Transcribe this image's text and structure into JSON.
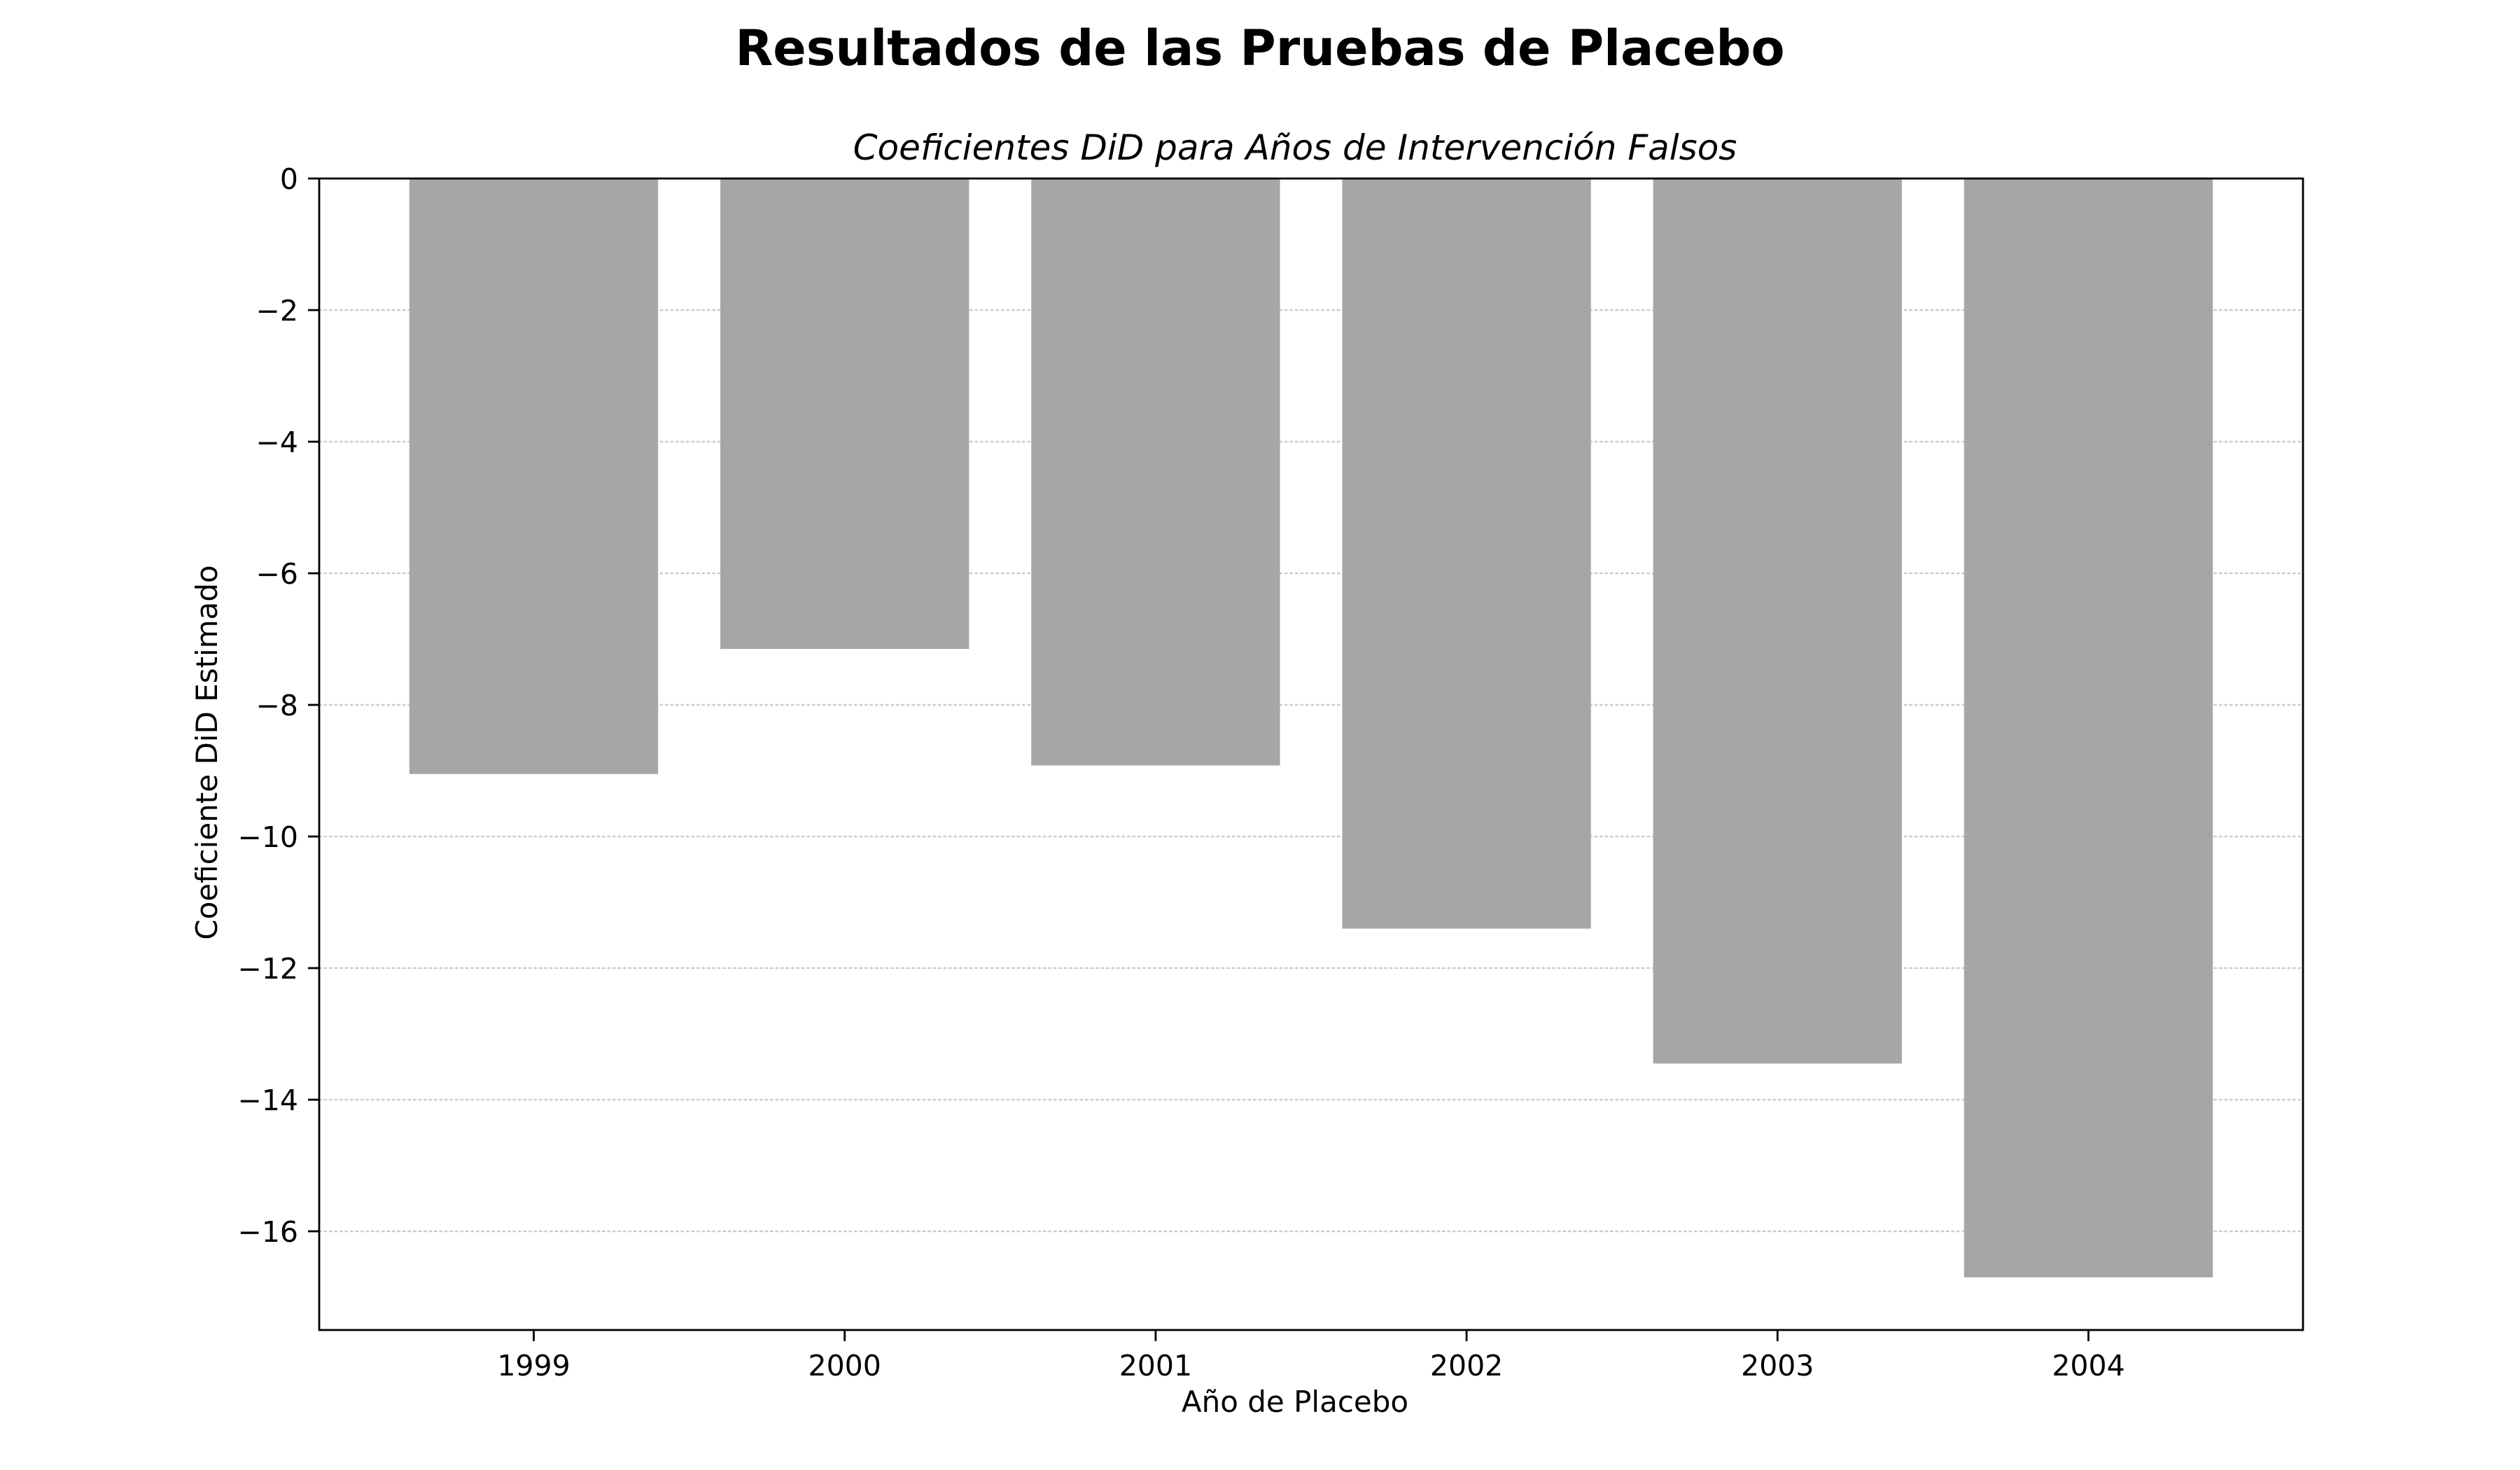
{
  "page": {
    "title": "Resultados de las Pruebas de Placebo"
  },
  "chart_data": {
    "type": "bar",
    "title": "Coeficientes DiD para Años de Intervención Falsos",
    "xlabel": "Año de Placebo",
    "ylabel": "Coeficiente DiD Estimado",
    "categories": [
      "1999",
      "2000",
      "2001",
      "2002",
      "2003",
      "2004"
    ],
    "values": [
      -9.05,
      -7.15,
      -8.92,
      -11.4,
      -13.45,
      -16.7
    ],
    "ylim": [
      -17.5,
      0
    ],
    "yticks": [
      0,
      -2,
      -4,
      -6,
      -8,
      -10,
      -12,
      -14,
      -16
    ],
    "ytick_labels": [
      "0",
      "−2",
      "−4",
      "−6",
      "−8",
      "−10",
      "−12",
      "−14",
      "−16"
    ],
    "grid": {
      "y": true,
      "x": false,
      "style": "dotted"
    },
    "bar_color": "#a6a6a6",
    "grid_color": "#cccccc",
    "axis_color": "#000000"
  }
}
